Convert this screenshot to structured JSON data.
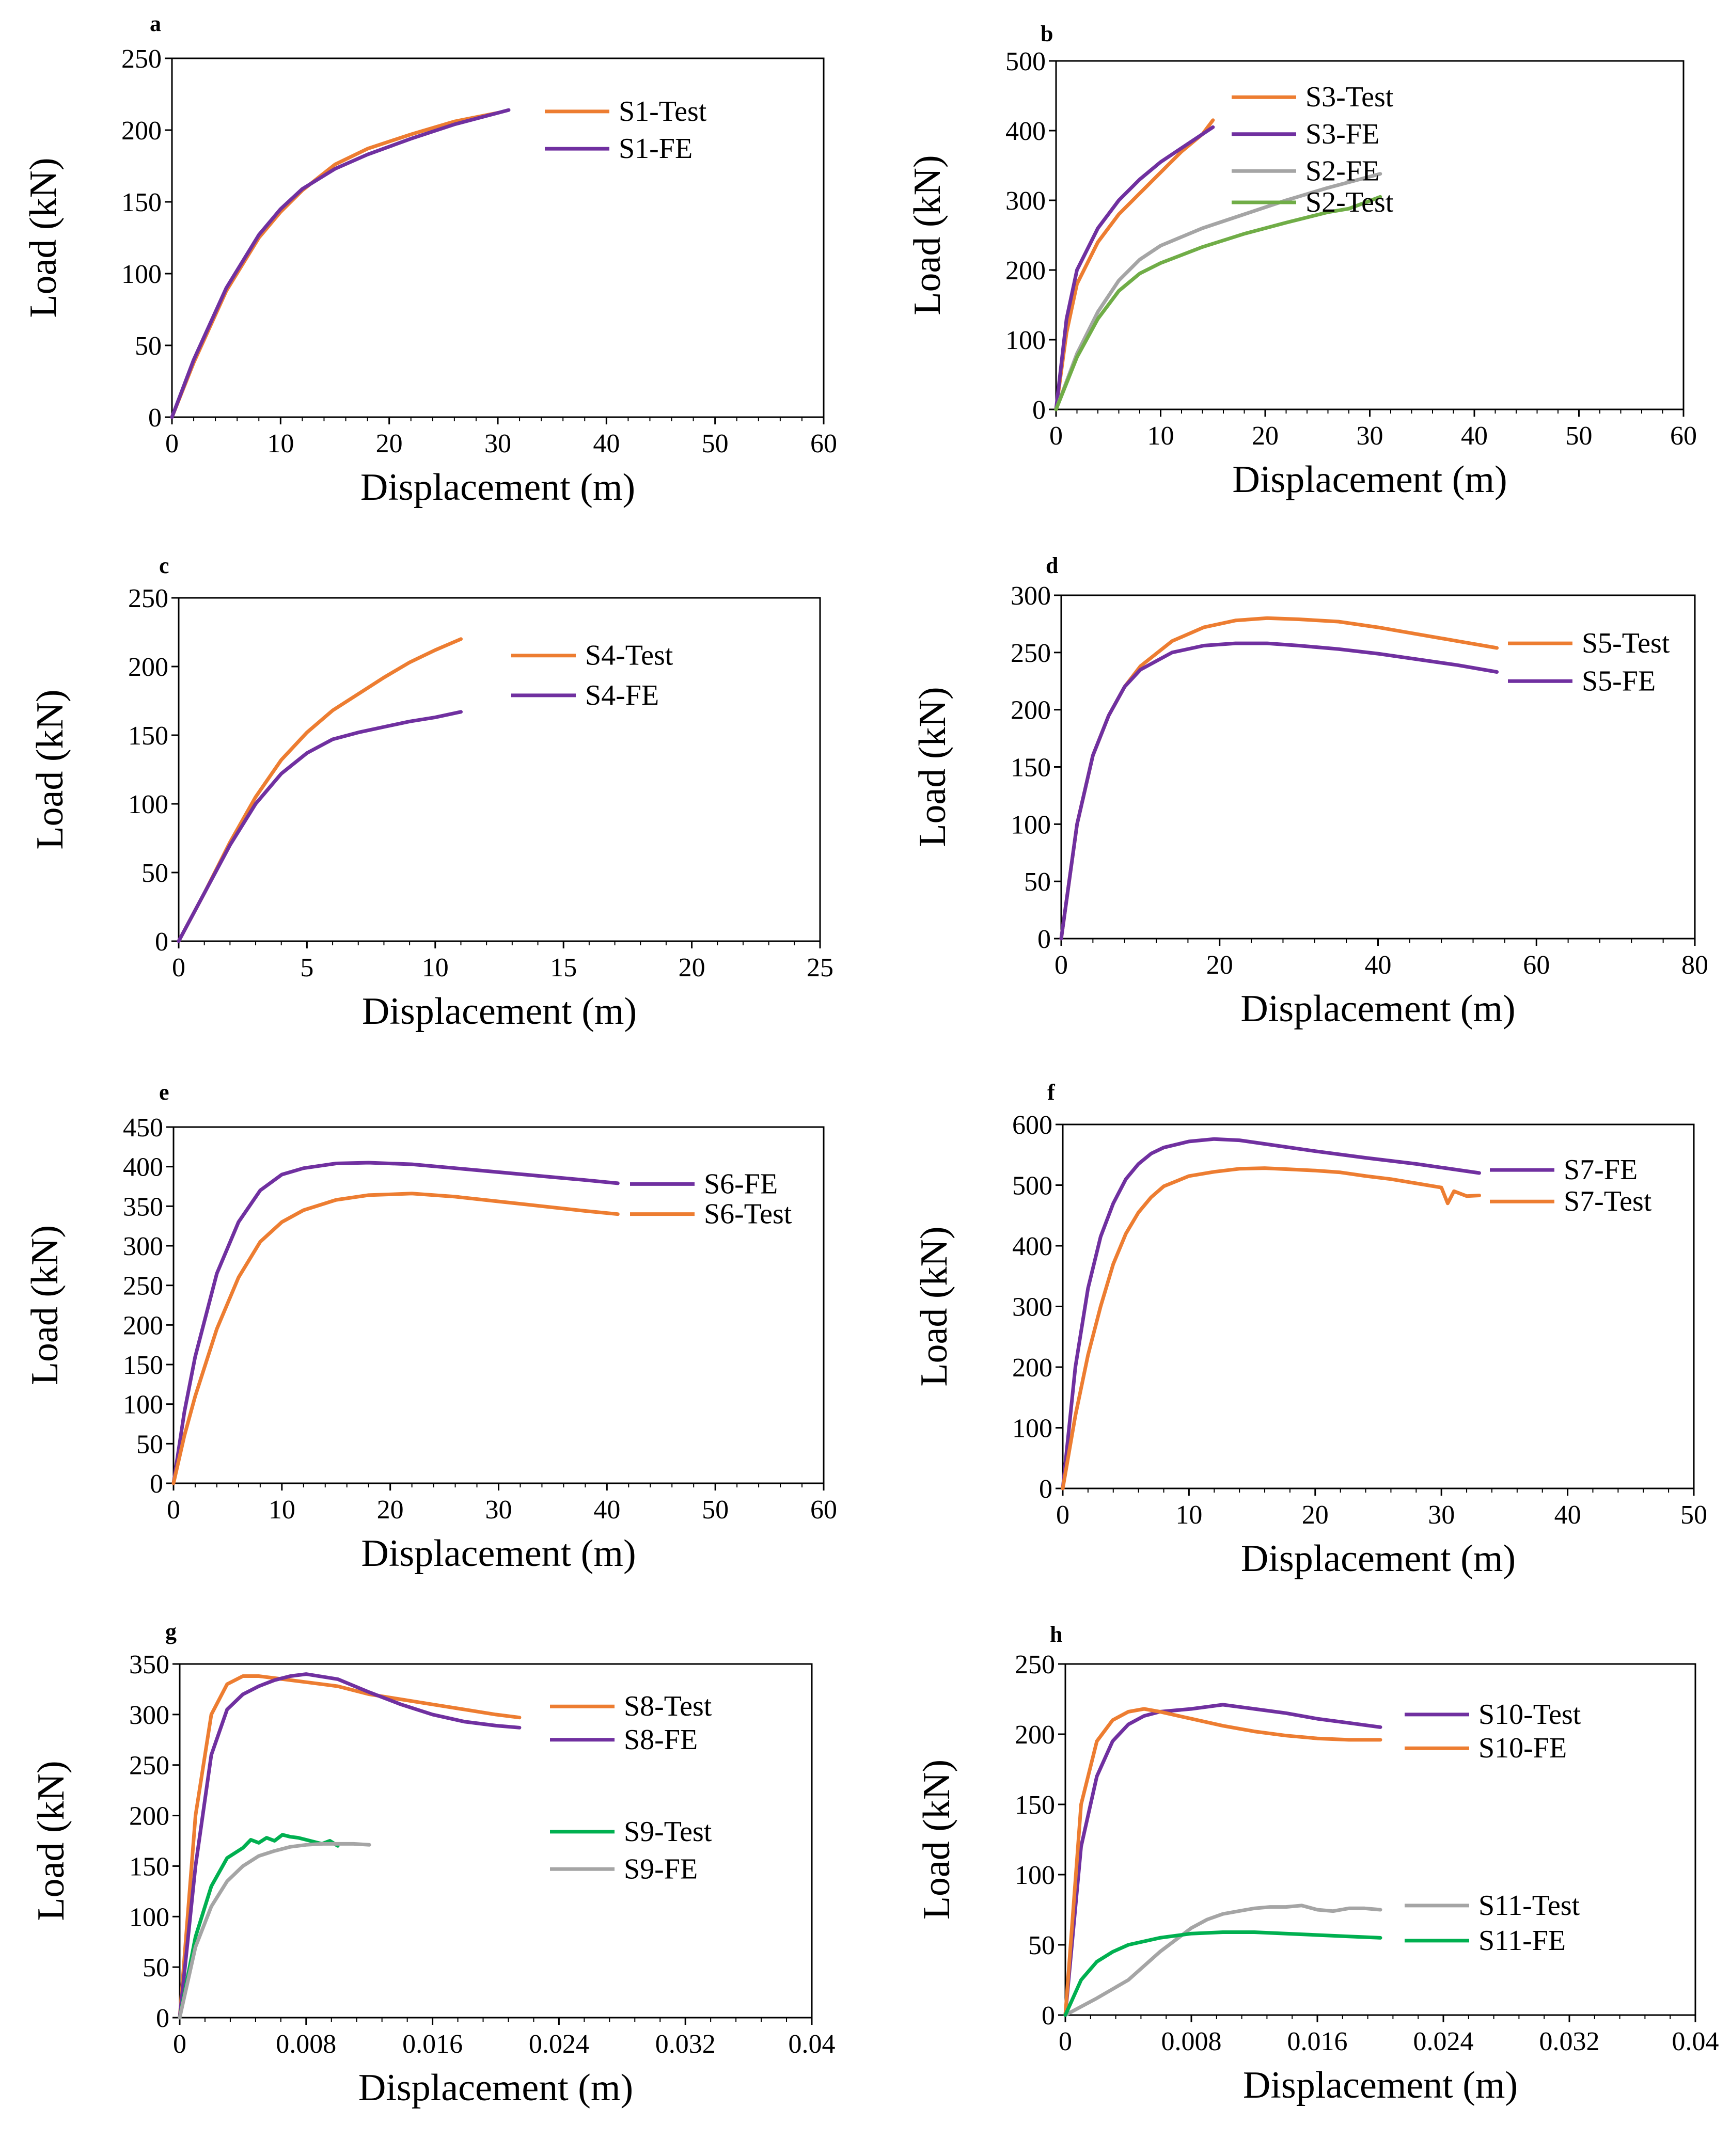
{
  "chart_data": [
    {
      "panel": "a",
      "type": "line",
      "xlabel": "Displacement (m)",
      "ylabel": "Load (kN)",
      "xlim": [
        0,
        60
      ],
      "ylim": [
        0,
        250
      ],
      "xticks": [
        "0",
        "10",
        "20",
        "30",
        "40",
        "50",
        "60"
      ],
      "yticks": [
        "0",
        "50",
        "100",
        "150",
        "200",
        "250"
      ],
      "series": [
        {
          "name": "S1-Test",
          "color": "#ed7d31",
          "legend_y": 213,
          "x": [
            0,
            2,
            5,
            8,
            10,
            12,
            15,
            18,
            22,
            26,
            30
          ],
          "y": [
            0,
            38,
            88,
            125,
            143,
            158,
            176,
            187,
            197,
            206,
            212
          ]
        },
        {
          "name": "S1-FE",
          "color": "#7030a0",
          "legend_y": 187,
          "x": [
            0,
            2,
            5,
            8,
            10,
            12,
            15,
            18,
            22,
            26,
            31
          ],
          "y": [
            0,
            40,
            90,
            127,
            145,
            159,
            173,
            183,
            194,
            204,
            214
          ]
        }
      ]
    },
    {
      "panel": "b",
      "type": "line",
      "xlabel": "Displacement (m)",
      "ylabel": "Load (kN)",
      "xlim": [
        0,
        60
      ],
      "ylim": [
        0,
        500
      ],
      "xticks": [
        "0",
        "10",
        "20",
        "30",
        "40",
        "50",
        "60"
      ],
      "yticks": [
        "0",
        "100",
        "200",
        "300",
        "400",
        "500"
      ],
      "series": [
        {
          "name": "S3-Test",
          "color": "#ed7d31",
          "legend_y": 448,
          "x": [
            0,
            1,
            2,
            4,
            6,
            8,
            10,
            12,
            14,
            15
          ],
          "y": [
            0,
            110,
            180,
            240,
            280,
            310,
            340,
            370,
            395,
            415
          ]
        },
        {
          "name": "S3-FE",
          "color": "#7030a0",
          "legend_y": 395,
          "x": [
            0,
            1,
            2,
            4,
            6,
            8,
            10,
            12,
            14,
            15
          ],
          "y": [
            0,
            130,
            200,
            260,
            300,
            330,
            355,
            375,
            395,
            405
          ]
        },
        {
          "name": "S2-FE",
          "color": "#a5a5a5",
          "legend_y": 342,
          "x": [
            0,
            2,
            4,
            6,
            8,
            10,
            14,
            18,
            22,
            26,
            31
          ],
          "y": [
            0,
            80,
            140,
            185,
            215,
            235,
            260,
            280,
            300,
            318,
            338
          ]
        },
        {
          "name": "S2-Test",
          "color": "#70ad47",
          "legend_y": 297,
          "x": [
            0,
            2,
            4,
            6,
            8,
            10,
            14,
            18,
            22,
            26,
            28,
            31
          ],
          "y": [
            0,
            75,
            130,
            170,
            195,
            210,
            233,
            252,
            268,
            283,
            288,
            305
          ]
        }
      ]
    },
    {
      "panel": "c",
      "type": "line",
      "xlabel": "Displacement (m)",
      "ylabel": "Load (kN)",
      "xlim": [
        0,
        25
      ],
      "ylim": [
        0,
        250
      ],
      "xticks": [
        "0",
        "5",
        "10",
        "15",
        "20",
        "25"
      ],
      "yticks": [
        "0",
        "50",
        "100",
        "150",
        "200",
        "250"
      ],
      "series": [
        {
          "name": "S4-Test",
          "color": "#ed7d31",
          "legend_y": 208,
          "x": [
            0,
            1,
            2,
            3,
            4,
            5,
            6,
            7,
            8,
            9,
            10,
            11
          ],
          "y": [
            0,
            35,
            72,
            105,
            132,
            152,
            168,
            180,
            192,
            203,
            212,
            220
          ]
        },
        {
          "name": "S4-FE",
          "color": "#7030a0",
          "legend_y": 179,
          "x": [
            0,
            1,
            2,
            3,
            4,
            5,
            6,
            7,
            8,
            9,
            10,
            11
          ],
          "y": [
            0,
            35,
            70,
            100,
            122,
            137,
            147,
            152,
            156,
            160,
            163,
            167
          ]
        }
      ]
    },
    {
      "panel": "d",
      "type": "line",
      "xlabel": "Displacement (m)",
      "ylabel": "Load (kN)",
      "xlim": [
        0,
        80
      ],
      "ylim": [
        0,
        300
      ],
      "xticks": [
        "0",
        "20",
        "40",
        "60",
        "80"
      ],
      "yticks": [
        "0",
        "50",
        "100",
        "150",
        "200",
        "250",
        "300"
      ],
      "series": [
        {
          "name": "S5-Test",
          "color": "#ed7d31",
          "legend_y": 258,
          "x": [
            0,
            2,
            4,
            6,
            8,
            10,
            14,
            18,
            22,
            26,
            30,
            35,
            40,
            45,
            50,
            55
          ],
          "y": [
            0,
            100,
            160,
            195,
            220,
            238,
            260,
            272,
            278,
            280,
            279,
            277,
            272,
            266,
            260,
            254
          ]
        },
        {
          "name": "S5-FE",
          "color": "#7030a0",
          "legend_y": 225,
          "x": [
            0,
            2,
            4,
            6,
            8,
            10,
            14,
            18,
            22,
            26,
            30,
            35,
            40,
            45,
            50,
            55
          ],
          "y": [
            0,
            100,
            160,
            195,
            220,
            235,
            250,
            256,
            258,
            258,
            256,
            253,
            249,
            244,
            239,
            233
          ]
        }
      ]
    },
    {
      "panel": "e",
      "type": "line",
      "xlabel": "Displacement (m)",
      "ylabel": "Load (kN)",
      "xlim": [
        0,
        60
      ],
      "ylim": [
        0,
        450
      ],
      "xticks": [
        "0",
        "10",
        "20",
        "30",
        "40",
        "50",
        "60"
      ],
      "yticks": [
        "0",
        "50",
        "100",
        "150",
        "200",
        "250",
        "300",
        "350",
        "400",
        "450"
      ],
      "series": [
        {
          "name": "S6-FE",
          "color": "#7030a0",
          "legend_y": 378,
          "x": [
            0,
            1,
            2,
            4,
            6,
            8,
            10,
            12,
            15,
            18,
            22,
            26,
            30,
            34,
            38,
            41
          ],
          "y": [
            0,
            90,
            160,
            265,
            330,
            370,
            390,
            398,
            404,
            405,
            403,
            398,
            393,
            388,
            383,
            379
          ]
        },
        {
          "name": "S6-Test",
          "color": "#ed7d31",
          "legend_y": 340,
          "x": [
            0,
            1,
            2,
            4,
            6,
            8,
            10,
            12,
            15,
            18,
            22,
            26,
            30,
            34,
            38,
            41
          ],
          "y": [
            0,
            60,
            110,
            195,
            260,
            305,
            330,
            345,
            358,
            364,
            366,
            362,
            356,
            350,
            344,
            340
          ]
        }
      ]
    },
    {
      "panel": "f",
      "type": "line",
      "xlabel": "Displacement (m)",
      "ylabel": "Load (kN)",
      "xlim": [
        0,
        50
      ],
      "ylim": [
        0,
        600
      ],
      "xticks": [
        "0",
        "10",
        "20",
        "30",
        "40",
        "50"
      ],
      "yticks": [
        "0",
        "100",
        "200",
        "300",
        "400",
        "500",
        "600"
      ],
      "series": [
        {
          "name": "S7-FE",
          "color": "#7030a0",
          "legend_y": 525,
          "x": [
            0,
            1,
            2,
            3,
            4,
            5,
            6,
            7,
            8,
            10,
            12,
            14,
            16,
            20,
            24,
            28,
            33
          ],
          "y": [
            0,
            200,
            330,
            415,
            470,
            510,
            535,
            552,
            562,
            572,
            576,
            574,
            568,
            556,
            545,
            535,
            520
          ]
        },
        {
          "name": "S7-Test",
          "color": "#ed7d31",
          "legend_y": 473,
          "x": [
            0,
            1,
            2,
            3,
            4,
            5,
            6,
            7,
            8,
            10,
            12,
            14,
            16,
            18,
            20,
            22,
            24,
            26,
            28,
            30,
            30.5,
            31,
            32,
            33
          ],
          "y": [
            0,
            120,
            220,
            300,
            370,
            420,
            455,
            480,
            498,
            515,
            522,
            527,
            528,
            526,
            524,
            521,
            515,
            510,
            503,
            496,
            470,
            490,
            482,
            483
          ]
        }
      ]
    },
    {
      "panel": "g",
      "type": "line",
      "xlabel": "Displacement (m)",
      "ylabel": "Load (kN)",
      "xlim": [
        0,
        0.04
      ],
      "ylim": [
        0,
        350
      ],
      "xticks": [
        "0",
        "0.008",
        "0.016",
        "0.024",
        "0.032",
        "0.04"
      ],
      "yticks": [
        "0",
        "50",
        "100",
        "150",
        "200",
        "250",
        "300",
        "350"
      ],
      "series": [
        {
          "name": "S8-Test",
          "color": "#ed7d31",
          "legend_y": 308,
          "x": [
            0,
            0.001,
            0.002,
            0.003,
            0.004,
            0.005,
            0.006,
            0.008,
            0.01,
            0.012,
            0.014,
            0.016,
            0.018,
            0.02,
            0.0215
          ],
          "y": [
            0,
            200,
            300,
            330,
            338,
            338,
            336,
            332,
            328,
            320,
            315,
            310,
            305,
            300,
            297
          ]
        },
        {
          "name": "S8-FE",
          "color": "#7030a0",
          "legend_y": 275,
          "x": [
            0,
            0.001,
            0.002,
            0.003,
            0.004,
            0.005,
            0.006,
            0.007,
            0.008,
            0.01,
            0.012,
            0.014,
            0.016,
            0.018,
            0.02,
            0.0215
          ],
          "y": [
            0,
            150,
            260,
            305,
            320,
            328,
            334,
            338,
            340,
            335,
            322,
            310,
            300,
            293,
            289,
            287
          ]
        },
        {
          "name": "S9-Test",
          "color": "#00b050",
          "legend_y": 184,
          "x": [
            0,
            0.001,
            0.002,
            0.003,
            0.004,
            0.0045,
            0.005,
            0.0055,
            0.006,
            0.0065,
            0.007,
            0.0075,
            0.008,
            0.009,
            0.0095,
            0.01
          ],
          "y": [
            0,
            80,
            130,
            158,
            168,
            176,
            173,
            178,
            175,
            181,
            179,
            178,
            176,
            172,
            175,
            170
          ]
        },
        {
          "name": "S9-FE",
          "color": "#a5a5a5",
          "legend_y": 147,
          "x": [
            0,
            0.001,
            0.002,
            0.003,
            0.004,
            0.005,
            0.006,
            0.007,
            0.008,
            0.009,
            0.01,
            0.011,
            0.012
          ],
          "y": [
            0,
            70,
            110,
            135,
            150,
            160,
            165,
            169,
            171,
            172,
            172,
            172,
            171
          ]
        }
      ]
    },
    {
      "panel": "h",
      "type": "line",
      "xlabel": "Displacement (m)",
      "ylabel": "Load (kN)",
      "xlim": [
        0,
        0.04
      ],
      "ylim": [
        0,
        250
      ],
      "xticks": [
        "0",
        "0.008",
        "0.016",
        "0.024",
        "0.032",
        "0.04"
      ],
      "yticks": [
        "0",
        "50",
        "100",
        "150",
        "200",
        "250"
      ],
      "series": [
        {
          "name": "S10-Test",
          "color": "#7030a0",
          "legend_y": 214,
          "x": [
            0,
            0.001,
            0.002,
            0.003,
            0.004,
            0.005,
            0.006,
            0.008,
            0.01,
            0.012,
            0.014,
            0.016,
            0.018,
            0.02
          ],
          "y": [
            0,
            120,
            170,
            195,
            207,
            213,
            216,
            218,
            221,
            218,
            215,
            211,
            208,
            205
          ]
        },
        {
          "name": "S10-FE",
          "color": "#ed7d31",
          "legend_y": 190,
          "x": [
            0,
            0.001,
            0.002,
            0.003,
            0.004,
            0.005,
            0.006,
            0.008,
            0.01,
            0.012,
            0.014,
            0.016,
            0.018,
            0.02
          ],
          "y": [
            0,
            150,
            195,
            210,
            216,
            218,
            216,
            211,
            206,
            202,
            199,
            197,
            196,
            196
          ]
        },
        {
          "name": "S11-Test",
          "color": "#a5a5a5",
          "legend_y": 78,
          "x": [
            0,
            0.002,
            0.004,
            0.006,
            0.008,
            0.009,
            0.01,
            0.011,
            0.012,
            0.013,
            0.014,
            0.015,
            0.016,
            0.017,
            0.018,
            0.019,
            0.02
          ],
          "y": [
            0,
            12,
            25,
            45,
            62,
            68,
            72,
            74,
            76,
            77,
            77,
            78,
            75,
            74,
            76,
            76,
            75
          ]
        },
        {
          "name": "S11-FE",
          "color": "#00b050",
          "legend_y": 53,
          "x": [
            0,
            0.001,
            0.002,
            0.003,
            0.004,
            0.006,
            0.008,
            0.01,
            0.012,
            0.014,
            0.016,
            0.018,
            0.02
          ],
          "y": [
            0,
            25,
            38,
            45,
            50,
            55,
            58,
            59,
            59,
            58,
            57,
            56,
            55
          ]
        }
      ]
    }
  ]
}
